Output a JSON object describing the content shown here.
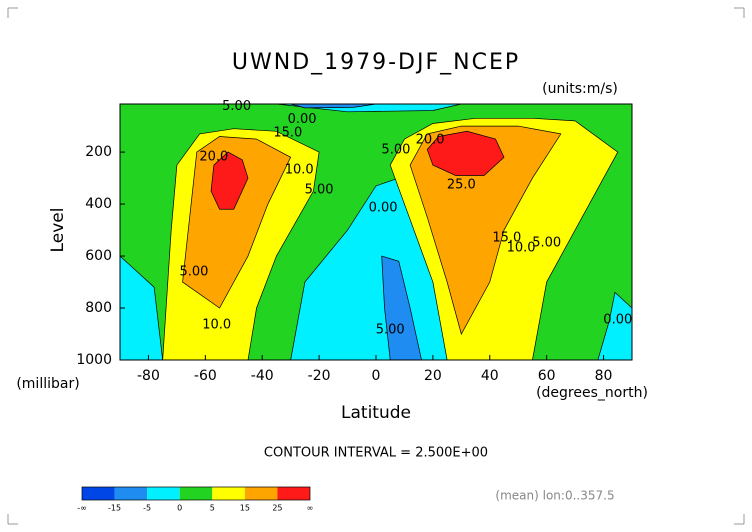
{
  "chart_data": {
    "type": "contour",
    "title": "UWND_1979-DJF_NCEP",
    "units": "(units:m/s)",
    "y_label": "Level",
    "y_unit": "(millibar)",
    "x_label": "Latitude",
    "x_unit": "(degrees_north)",
    "note": "CONTOUR INTERVAL = 2.500E+00",
    "footer": "(mean) lon:0..357.5",
    "xlim": [
      -90,
      90
    ],
    "xticks": [
      -80,
      -60,
      -40,
      -20,
      0,
      20,
      40,
      60,
      80
    ],
    "ylim": [
      1000,
      15
    ],
    "yticks": [
      200,
      400,
      600,
      800,
      1000
    ],
    "background": {
      "level": 0,
      "color": "#22d322"
    },
    "regions": [
      {
        "level": -5,
        "color": "#00f0ff",
        "points": [
          [
            -30,
            1000
          ],
          [
            -25,
            700
          ],
          [
            -10,
            500
          ],
          [
            0,
            330
          ],
          [
            8,
            300
          ],
          [
            10,
            400
          ],
          [
            20,
            550
          ],
          [
            28,
            800
          ],
          [
            35,
            1000
          ]
        ]
      },
      {
        "level": -5,
        "color": "#00f0ff",
        "points": [
          [
            -90,
            600
          ],
          [
            -78,
            720
          ],
          [
            -75,
            1000
          ],
          [
            -90,
            1000
          ]
        ]
      },
      {
        "level": -5,
        "color": "#00f0ff",
        "points": [
          [
            84,
            740
          ],
          [
            90,
            800
          ],
          [
            90,
            1000
          ],
          [
            78,
            1000
          ],
          [
            82,
            850
          ]
        ]
      },
      {
        "level": -5,
        "color": "#00f0ff",
        "points": [
          [
            -35,
            15
          ],
          [
            30,
            15
          ],
          [
            20,
            40
          ],
          [
            -10,
            45
          ]
        ]
      },
      {
        "level": -15,
        "color": "#1e8cf0",
        "points": [
          [
            2,
            600
          ],
          [
            8,
            620
          ],
          [
            12,
            800
          ],
          [
            16,
            1000
          ],
          [
            5,
            1000
          ],
          [
            3,
            800
          ]
        ]
      },
      {
        "level": -15,
        "color": "#1e8cf0",
        "points": [
          [
            -30,
            15
          ],
          [
            0,
            15
          ],
          [
            -8,
            28
          ],
          [
            -25,
            30
          ]
        ]
      },
      {
        "level": 5,
        "color": "#ffff00",
        "points": [
          [
            -75,
            1000
          ],
          [
            -72,
            500
          ],
          [
            -70,
            250
          ],
          [
            -62,
            130
          ],
          [
            -50,
            110
          ],
          [
            -35,
            120
          ],
          [
            -20,
            200
          ],
          [
            -22,
            350
          ],
          [
            -35,
            600
          ],
          [
            -42,
            800
          ],
          [
            -45,
            1000
          ]
        ]
      },
      {
        "level": 5,
        "color": "#ffff00",
        "points": [
          [
            5,
            250
          ],
          [
            10,
            150
          ],
          [
            20,
            90
          ],
          [
            35,
            70
          ],
          [
            55,
            70
          ],
          [
            70,
            80
          ],
          [
            85,
            200
          ],
          [
            75,
            400
          ],
          [
            60,
            700
          ],
          [
            55,
            1000
          ],
          [
            25,
            1000
          ],
          [
            20,
            700
          ],
          [
            10,
            400
          ]
        ]
      },
      {
        "level": 15,
        "color": "#ffa500",
        "points": [
          [
            -68,
            700
          ],
          [
            -65,
            400
          ],
          [
            -63,
            200
          ],
          [
            -55,
            140
          ],
          [
            -42,
            150
          ],
          [
            -30,
            220
          ],
          [
            -38,
            400
          ],
          [
            -45,
            600
          ],
          [
            -55,
            800
          ]
        ]
      },
      {
        "level": 15,
        "color": "#ffa500",
        "points": [
          [
            12,
            250
          ],
          [
            18,
            130
          ],
          [
            30,
            100
          ],
          [
            50,
            100
          ],
          [
            65,
            130
          ],
          [
            55,
            300
          ],
          [
            45,
            500
          ],
          [
            40,
            700
          ],
          [
            30,
            900
          ],
          [
            25,
            700
          ],
          [
            18,
            450
          ]
        ]
      },
      {
        "level": 25,
        "color": "#ff1a1a",
        "points": [
          [
            -58,
            350
          ],
          [
            -57,
            250
          ],
          [
            -52,
            200
          ],
          [
            -47,
            230
          ],
          [
            -45,
            300
          ],
          [
            -50,
            420
          ],
          [
            -55,
            420
          ]
        ]
      },
      {
        "level": 25,
        "color": "#ff1a1a",
        "points": [
          [
            18,
            190
          ],
          [
            22,
            140
          ],
          [
            32,
            120
          ],
          [
            42,
            150
          ],
          [
            45,
            220
          ],
          [
            38,
            290
          ],
          [
            28,
            290
          ],
          [
            20,
            250
          ]
        ]
      }
    ],
    "contour_labels": [
      {
        "text": "5.00",
        "lat": -49,
        "p": 25
      },
      {
        "text": "0.00",
        "lat": -26,
        "p": 75
      },
      {
        "text": "15.0",
        "lat": -31,
        "p": 127
      },
      {
        "text": "20.0",
        "lat": -57,
        "p": 219
      },
      {
        "text": "10.0",
        "lat": -27,
        "p": 269
      },
      {
        "text": "5.00",
        "lat": -20,
        "p": 346
      },
      {
        "text": "0.00",
        "lat": 2.5,
        "p": 415
      },
      {
        "text": "5.00",
        "lat": 7,
        "p": 192
      },
      {
        "text": "20.0",
        "lat": 19,
        "p": 154
      },
      {
        "text": "25.0",
        "lat": 30,
        "p": 327
      },
      {
        "text": "15.0",
        "lat": 46,
        "p": 531
      },
      {
        "text": "10.0",
        "lat": 51,
        "p": 569
      },
      {
        "text": "5.00",
        "lat": 60,
        "p": 550
      },
      {
        "text": "5.00",
        "lat": -64,
        "p": 662
      },
      {
        "text": "10.0",
        "lat": -56,
        "p": 865
      },
      {
        "text": "5.00",
        "lat": 5,
        "p": 885
      },
      {
        "text": "0.00",
        "lat": 85,
        "p": 846
      }
    ],
    "colorbar": {
      "labels": [
        "-∞",
        "-15",
        "-5",
        "0",
        "5",
        "15",
        "25",
        "∞"
      ],
      "colors": [
        "#0046e6",
        "#1e8cf0",
        "#00f0ff",
        "#22d322",
        "#ffff00",
        "#ffa500",
        "#ff1a1a"
      ]
    }
  }
}
